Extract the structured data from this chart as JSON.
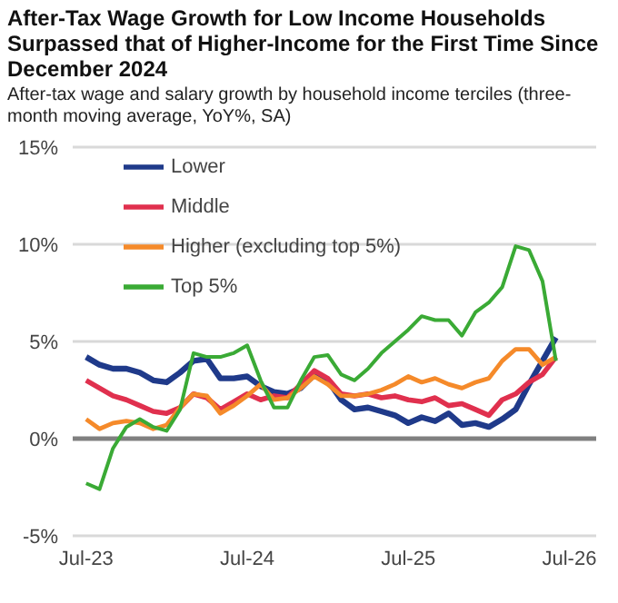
{
  "chart_data": {
    "type": "line",
    "title": "After-Tax Wage Growth for Low Income Households Surpassed that of Higher-Income for the First Time Since December 2024",
    "subtitle": "After-tax wage and salary growth by household income terciles (three-month moving average, YoY%, SA)",
    "x": [
      "2023-07",
      "2023-08",
      "2023-09",
      "2023-10",
      "2023-11",
      "2023-12",
      "2024-01",
      "2024-02",
      "2024-03",
      "2024-04",
      "2024-05",
      "2024-06",
      "2024-07",
      "2024-08",
      "2024-09",
      "2024-10",
      "2024-11",
      "2024-12",
      "2025-01",
      "2025-02",
      "2025-03",
      "2025-04",
      "2025-05",
      "2025-06",
      "2025-07",
      "2025-08",
      "2025-09",
      "2025-10",
      "2025-11",
      "2025-12",
      "2026-01",
      "2026-02",
      "2026-03",
      "2026-04",
      "2026-05",
      "2026-06"
    ],
    "series": [
      {
        "name": "Lower",
        "color": "#1f3a8a",
        "values": [
          4.2,
          3.8,
          3.6,
          3.6,
          3.4,
          3.0,
          2.9,
          3.4,
          4.0,
          4.1,
          3.1,
          3.1,
          3.2,
          2.7,
          2.4,
          2.3,
          2.6,
          3.3,
          3.0,
          2.0,
          1.5,
          1.6,
          1.4,
          1.2,
          0.8,
          1.1,
          0.9,
          1.3,
          0.7,
          0.8,
          0.6,
          1.0,
          1.5,
          2.8,
          4.0,
          5.2
        ]
      },
      {
        "name": "Middle",
        "color": "#e0304e",
        "values": [
          3.0,
          2.6,
          2.2,
          2.0,
          1.7,
          1.4,
          1.3,
          1.6,
          2.3,
          2.1,
          1.5,
          1.9,
          2.3,
          2.0,
          2.2,
          2.1,
          2.8,
          3.5,
          3.1,
          2.3,
          2.2,
          2.3,
          2.1,
          2.2,
          2.0,
          1.9,
          2.1,
          1.7,
          1.8,
          1.5,
          1.2,
          2.0,
          2.3,
          2.9,
          3.3,
          4.2
        ]
      },
      {
        "name": "Higher (excluding top 5%)",
        "color": "#f58a2a",
        "values": [
          1.0,
          0.5,
          0.8,
          0.9,
          0.8,
          0.5,
          0.7,
          1.6,
          2.3,
          2.2,
          1.3,
          1.7,
          2.2,
          2.8,
          2.0,
          2.1,
          2.6,
          3.2,
          2.8,
          2.2,
          2.2,
          2.3,
          2.5,
          2.8,
          3.2,
          2.9,
          3.1,
          2.8,
          2.6,
          2.9,
          3.1,
          4.0,
          4.6,
          4.6,
          3.8,
          4.2
        ]
      },
      {
        "name": "Top 5%",
        "color": "#3aaa35",
        "values": [
          -2.3,
          -2.6,
          -0.5,
          0.6,
          1.0,
          0.6,
          0.4,
          1.5,
          4.4,
          4.2,
          4.2,
          4.4,
          4.8,
          3.0,
          1.6,
          1.6,
          3.0,
          4.2,
          4.3,
          3.3,
          3.0,
          3.6,
          4.4,
          5.0,
          5.6,
          6.3,
          6.1,
          6.1,
          5.3,
          6.5,
          7.0,
          7.8,
          9.9,
          9.7,
          8.1,
          4.0
        ]
      }
    ],
    "xlim": [
      "2023-06",
      "2026-09"
    ],
    "xticks": [
      {
        "value": "2023-07",
        "label": "Jul-23"
      },
      {
        "value": "2024-07",
        "label": "Jul-24"
      },
      {
        "value": "2025-07",
        "label": "Jul-25"
      },
      {
        "value": "2026-07",
        "label": "Jul-26"
      }
    ],
    "ylim": [
      -5,
      15
    ],
    "yticks": [
      {
        "value": -5,
        "label": "-5%"
      },
      {
        "value": 0,
        "label": "0%"
      },
      {
        "value": 5,
        "label": "5%"
      },
      {
        "value": 10,
        "label": "10%"
      },
      {
        "value": 15,
        "label": "15%"
      }
    ],
    "ref_lines": [
      {
        "axis": "y",
        "value": 0,
        "color": "#808080"
      }
    ],
    "grid": "y",
    "legend": "top left",
    "marker": "none",
    "line_style": "solid"
  }
}
